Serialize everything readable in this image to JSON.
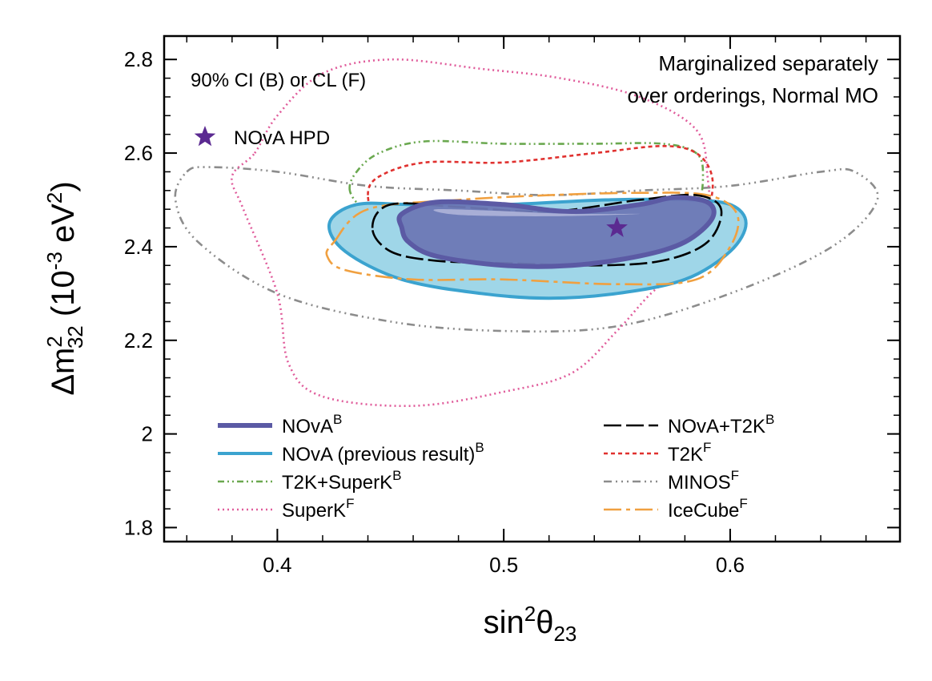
{
  "chart_data": {
    "type": "contour",
    "xlabel": {
      "base": "sin",
      "sup": "2",
      "theta": "θ",
      "sub": "23"
    },
    "ylabel": {
      "delta": "Δm",
      "sup": "2",
      "sub": "32",
      "units_pre": " (10",
      "units_exp": "-3",
      "units_mid": " eV",
      "units_exp2": "2",
      "units_post": ")"
    },
    "xlim": [
      0.35,
      0.675
    ],
    "ylim": [
      1.77,
      2.85
    ],
    "xticks": [
      0.4,
      0.5,
      0.6
    ],
    "xtick_labels": [
      "0.4",
      "0.5",
      "0.6"
    ],
    "yticks": [
      1.8,
      2.0,
      2.2,
      2.4,
      2.6,
      2.8
    ],
    "ytick_labels": [
      "1.8",
      "2",
      "2.2",
      "2.4",
      "2.6",
      "2.8"
    ],
    "annotations": {
      "interval": "90% CI (B) or CL (F)",
      "marginal_line1": "Marginalized separately",
      "marginal_line2": "over orderings, Normal MO"
    },
    "best_fit": {
      "label": "NOvA HPD",
      "x": 0.55,
      "y": 2.44,
      "color": "#5b2a91"
    },
    "series": [
      {
        "key": "minos",
        "name": "MINOS",
        "sup": "F",
        "color": "#8c8c8c",
        "dash": "10,5,2,5,2,5,2,5",
        "fill": "none",
        "points": [
          [
            0.36,
            2.56
          ],
          [
            0.37,
            2.57
          ],
          [
            0.4,
            2.56
          ],
          [
            0.44,
            2.53
          ],
          [
            0.48,
            2.52
          ],
          [
            0.52,
            2.51
          ],
          [
            0.56,
            2.52
          ],
          [
            0.6,
            2.53
          ],
          [
            0.64,
            2.56
          ],
          [
            0.655,
            2.56
          ],
          [
            0.665,
            2.5
          ],
          [
            0.645,
            2.4
          ],
          [
            0.6,
            2.3
          ],
          [
            0.55,
            2.23
          ],
          [
            0.5,
            2.22
          ],
          [
            0.45,
            2.24
          ],
          [
            0.4,
            2.3
          ],
          [
            0.365,
            2.41
          ],
          [
            0.355,
            2.5
          ]
        ]
      },
      {
        "key": "superk",
        "name": "SuperK",
        "sup": "F",
        "color": "#e05c9b",
        "dash": "2,4",
        "fill": "none",
        "points": [
          [
            0.39,
            2.6
          ],
          [
            0.4,
            2.68
          ],
          [
            0.42,
            2.77
          ],
          [
            0.45,
            2.8
          ],
          [
            0.49,
            2.78
          ],
          [
            0.525,
            2.76
          ],
          [
            0.56,
            2.72
          ],
          [
            0.585,
            2.65
          ],
          [
            0.59,
            2.55
          ],
          [
            0.59,
            2.45
          ],
          [
            0.58,
            2.36
          ],
          [
            0.565,
            2.3
          ],
          [
            0.55,
            2.22
          ],
          [
            0.53,
            2.13
          ],
          [
            0.5,
            2.09
          ],
          [
            0.46,
            2.06
          ],
          [
            0.42,
            2.08
          ],
          [
            0.405,
            2.15
          ],
          [
            0.4,
            2.3
          ],
          [
            0.385,
            2.48
          ],
          [
            0.38,
            2.55
          ]
        ]
      },
      {
        "key": "t2ksk",
        "name": "T2K+SuperK",
        "sup": "B",
        "color": "#6aa84f",
        "dash": "8,4,2,4,2,4",
        "fill": "none",
        "points": [
          [
            0.432,
            2.52
          ],
          [
            0.435,
            2.56
          ],
          [
            0.445,
            2.6
          ],
          [
            0.465,
            2.625
          ],
          [
            0.5,
            2.62
          ],
          [
            0.54,
            2.62
          ],
          [
            0.57,
            2.62
          ],
          [
            0.585,
            2.6
          ],
          [
            0.588,
            2.55
          ],
          [
            0.585,
            2.47
          ],
          [
            0.575,
            2.42
          ],
          [
            0.55,
            2.4
          ],
          [
            0.5,
            2.4
          ],
          [
            0.47,
            2.41
          ],
          [
            0.45,
            2.44
          ],
          [
            0.438,
            2.48
          ]
        ]
      },
      {
        "key": "t2k",
        "name": "T2K",
        "sup": "F",
        "color": "#e0312f",
        "dash": "5,4",
        "fill": "none",
        "points": [
          [
            0.44,
            2.51
          ],
          [
            0.445,
            2.55
          ],
          [
            0.465,
            2.58
          ],
          [
            0.5,
            2.58
          ],
          [
            0.54,
            2.6
          ],
          [
            0.57,
            2.615
          ],
          [
            0.585,
            2.6
          ],
          [
            0.592,
            2.55
          ],
          [
            0.59,
            2.48
          ],
          [
            0.58,
            2.43
          ],
          [
            0.555,
            2.415
          ],
          [
            0.52,
            2.4
          ],
          [
            0.49,
            2.395
          ],
          [
            0.46,
            2.41
          ],
          [
            0.445,
            2.45
          ]
        ]
      },
      {
        "key": "nova_prev",
        "name": "NOvA (previous result)",
        "sup": "B",
        "color": "#3ba3cf",
        "dash": "",
        "fill": "#9fd6e8",
        "points": [
          [
            0.423,
            2.45
          ],
          [
            0.435,
            2.49
          ],
          [
            0.46,
            2.49
          ],
          [
            0.5,
            2.49
          ],
          [
            0.545,
            2.5
          ],
          [
            0.58,
            2.5
          ],
          [
            0.6,
            2.49
          ],
          [
            0.607,
            2.45
          ],
          [
            0.6,
            2.39
          ],
          [
            0.58,
            2.33
          ],
          [
            0.55,
            2.3
          ],
          [
            0.52,
            2.29
          ],
          [
            0.49,
            2.3
          ],
          [
            0.455,
            2.33
          ],
          [
            0.43,
            2.39
          ]
        ]
      },
      {
        "key": "icecube",
        "name": "IceCube",
        "sup": "F",
        "color": "#f0a040",
        "dash": "22,6,5,6",
        "fill": "none",
        "points": [
          [
            0.425,
            2.41
          ],
          [
            0.44,
            2.48
          ],
          [
            0.48,
            2.5
          ],
          [
            0.52,
            2.51
          ],
          [
            0.56,
            2.515
          ],
          [
            0.59,
            2.51
          ],
          [
            0.603,
            2.47
          ],
          [
            0.6,
            2.4
          ],
          [
            0.585,
            2.33
          ],
          [
            0.55,
            2.32
          ],
          [
            0.5,
            2.33
          ],
          [
            0.46,
            2.33
          ],
          [
            0.43,
            2.35
          ],
          [
            0.422,
            2.38
          ]
        ]
      },
      {
        "key": "novat2k",
        "name": "NOvA+T2K",
        "sup": "B",
        "color": "#000000",
        "dash": "22,6",
        "fill": "none",
        "points": [
          [
            0.442,
            2.44
          ],
          [
            0.45,
            2.49
          ],
          [
            0.48,
            2.485
          ],
          [
            0.52,
            2.475
          ],
          [
            0.56,
            2.5
          ],
          [
            0.585,
            2.51
          ],
          [
            0.596,
            2.48
          ],
          [
            0.59,
            2.41
          ],
          [
            0.57,
            2.37
          ],
          [
            0.54,
            2.36
          ],
          [
            0.5,
            2.365
          ],
          [
            0.47,
            2.37
          ],
          [
            0.45,
            2.39
          ]
        ]
      },
      {
        "key": "nova",
        "name": "NOvA",
        "sup": "B",
        "color": "#5b5aa4",
        "dash": "",
        "fill": "#6d78b5",
        "points": [
          [
            0.455,
            2.44
          ],
          [
            0.455,
            2.47
          ],
          [
            0.47,
            2.495
          ],
          [
            0.5,
            2.49
          ],
          [
            0.53,
            2.475
          ],
          [
            0.56,
            2.49
          ],
          [
            0.575,
            2.505
          ],
          [
            0.59,
            2.495
          ],
          [
            0.592,
            2.46
          ],
          [
            0.58,
            2.41
          ],
          [
            0.56,
            2.38
          ],
          [
            0.53,
            2.36
          ],
          [
            0.5,
            2.36
          ],
          [
            0.47,
            2.38
          ],
          [
            0.458,
            2.41
          ]
        ],
        "inner_points": [
          [
            0.47,
            2.48
          ],
          [
            0.5,
            2.476
          ],
          [
            0.53,
            2.47
          ],
          [
            0.56,
            2.47
          ],
          [
            0.52,
            2.465
          ],
          [
            0.48,
            2.468
          ]
        ]
      }
    ],
    "legend": {
      "left": [
        "nova",
        "nova_prev",
        "t2ksk",
        "superk"
      ],
      "right": [
        "novat2k",
        "t2k",
        "minos",
        "icecube"
      ]
    }
  }
}
